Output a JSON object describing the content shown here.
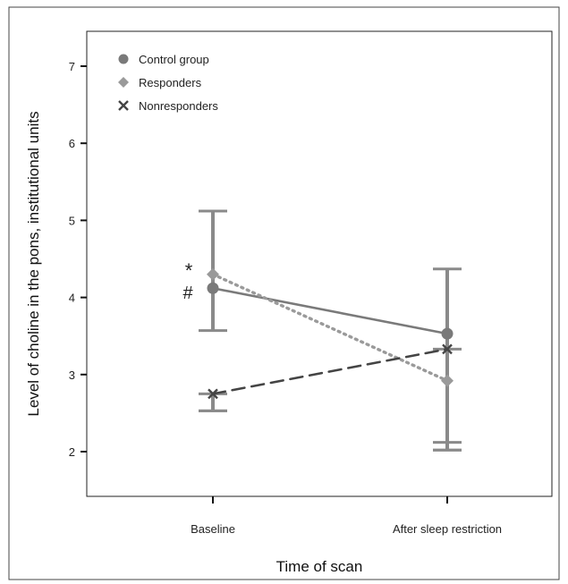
{
  "chart_data": {
    "type": "line",
    "xlabel": "Time of scan",
    "ylabel": "Level of choline in the pons, institutional units",
    "categories": [
      "Baseline",
      "After sleep restriction"
    ],
    "ylim": [
      1.5,
      7.5
    ],
    "yticks": [
      "2",
      "3",
      "4",
      "5",
      "6",
      "7"
    ],
    "grid": false,
    "legend_position": "top-left",
    "series": [
      {
        "name": "Control group",
        "marker": "circle",
        "line_style": "solid",
        "color": "#7a7a7a",
        "values": [
          4.12,
          3.53
        ],
        "error_low": [
          3.57,
          2.12
        ],
        "error_high": [
          5.12,
          4.37
        ]
      },
      {
        "name": "Responders",
        "marker": "diamond",
        "line_style": "dotted",
        "color": "#9a9a9a",
        "values": [
          4.3,
          2.92
        ]
      },
      {
        "name": "Nonresponders",
        "marker": "x",
        "line_style": "dashed",
        "color": "#444444",
        "values": [
          2.75,
          3.33
        ],
        "error_low": [
          2.53,
          2.02
        ],
        "error_high": [
          2.75,
          3.33
        ]
      }
    ],
    "annotations": [
      "*",
      "#"
    ]
  }
}
